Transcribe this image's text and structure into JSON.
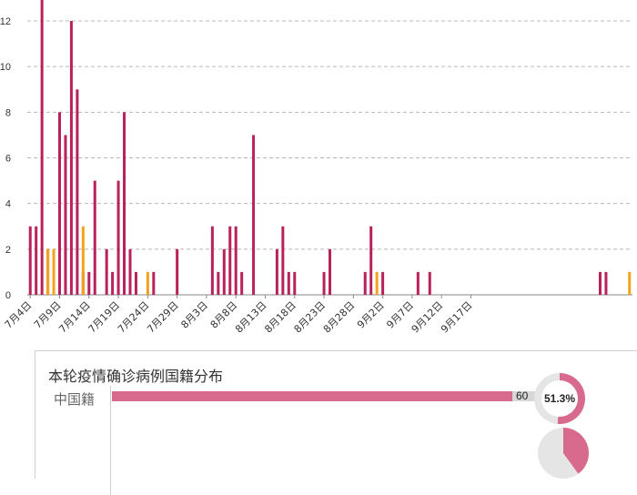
{
  "colors": {
    "primary": "#b9215a",
    "secondary": "#f2a21b",
    "grid": "#b8b8b8",
    "nationality_bar": "#d86a8e"
  },
  "chart_data": {
    "type": "bar",
    "stacked": true,
    "ylim": [
      0,
      12
    ],
    "yticks": [
      0,
      2,
      4,
      6,
      8,
      10,
      12
    ],
    "grid": true,
    "x_start": "7月4日",
    "xtick_labels": [
      "7月4日",
      "7月9日",
      "7月14日",
      "7月19日",
      "7月24日",
      "7月29日",
      "8月3日",
      "8月8日",
      "8月13日",
      "8月18日",
      "8月23日",
      "8月28日",
      "9月2日",
      "9月7日",
      "9月12日",
      "9月17日"
    ],
    "series": [
      {
        "values": [
          3,
          3,
          13,
          2,
          0,
          8,
          7,
          12,
          9,
          1,
          1,
          5,
          0,
          2,
          1,
          5,
          8,
          2,
          1,
          0,
          0,
          1,
          0,
          0,
          0,
          2,
          0,
          0,
          0,
          0,
          0,
          3,
          1,
          2,
          3,
          3,
          1,
          0,
          7,
          0,
          0,
          0,
          2,
          3,
          1,
          1,
          0,
          0,
          0,
          0,
          1,
          2,
          0,
          0,
          0,
          0,
          0,
          1,
          3,
          0,
          1,
          0,
          0,
          0,
          0,
          0,
          1,
          0,
          1,
          0,
          0,
          0,
          0,
          0,
          0,
          0,
          0,
          0,
          0,
          0,
          0,
          0,
          0,
          0,
          0,
          0,
          0,
          0,
          0,
          0,
          0,
          0,
          0,
          0,
          0,
          0,
          0,
          1,
          1,
          0,
          0,
          0,
          0
        ]
      },
      {
        "values": [
          0,
          0,
          0,
          0,
          0,
          0,
          0,
          0,
          0,
          0,
          0,
          0,
          0,
          0,
          0,
          0,
          0,
          0,
          0,
          0,
          0,
          0,
          0,
          0,
          0,
          0,
          0,
          0,
          0,
          0,
          0,
          0,
          0,
          0,
          0,
          0,
          0,
          0,
          0,
          0,
          0,
          0,
          0,
          0,
          0,
          0,
          0,
          0,
          0,
          0,
          0,
          0,
          0,
          0,
          0,
          0,
          0,
          0,
          0,
          0,
          0,
          0,
          0,
          0,
          0,
          0,
          0,
          0,
          0,
          0,
          0,
          0,
          0,
          0,
          0,
          0,
          0,
          0,
          0,
          0,
          0,
          0,
          0,
          0,
          0,
          0,
          0,
          0,
          0,
          0,
          0,
          0,
          0,
          0,
          0,
          0,
          0,
          0,
          0,
          0,
          0,
          0,
          1
        ]
      }
    ],
    "secondary_overlays": [
      {
        "x_index": 3,
        "value": 2
      },
      {
        "x_index": 4,
        "value": 2
      },
      {
        "x_index": 9,
        "value": 3
      },
      {
        "x_index": 20,
        "value": 1
      },
      {
        "x_index": 59,
        "value": 1
      }
    ]
  },
  "panel": {
    "title": "本轮疫情确诊病例国籍分布",
    "rows": [
      {
        "label": "中国籍",
        "count": 60,
        "percent": "51.3%",
        "fraction": 0.513
      }
    ]
  }
}
